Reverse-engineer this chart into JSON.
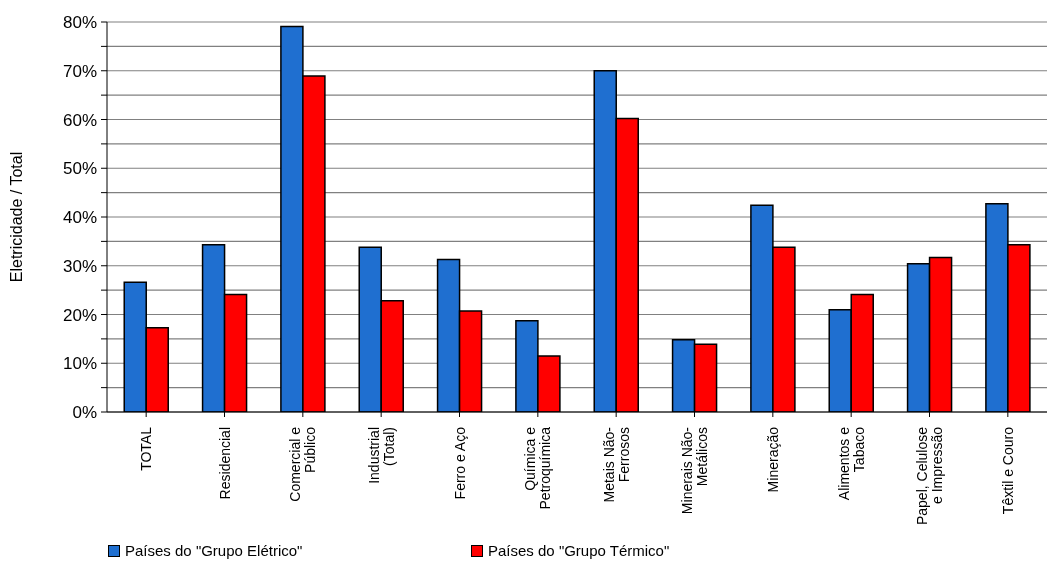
{
  "chart_data": {
    "type": "bar",
    "ylabel": "Eletricidade / Total",
    "categories": [
      "TOTAL",
      "Residencial",
      "Comercial e\nPúblico",
      "Industrial\n(Total)",
      "Ferro e Aço",
      "Química e\nPetroquímica",
      "Metais Não-\nFerrosos",
      "Minerais Não-\nMetálicos",
      "Mineração",
      "Alimentos e\nTabaco",
      "Papel, Celulose\ne Impressão",
      "Têxtil e Couro"
    ],
    "series": [
      {
        "name": "Países do \"Grupo Elétrico\"",
        "color": "#1f6fd0",
        "values": [
          26.6,
          34.3,
          79.1,
          33.8,
          31.3,
          18.7,
          70,
          14.8,
          42.4,
          21.0,
          30.4,
          42.7
        ]
      },
      {
        "name": "Países do \"Grupo Térmico\"",
        "color": "#ff0000",
        "values": [
          17.3,
          24.1,
          68.9,
          22.8,
          20.7,
          11.5,
          60.2,
          13.9,
          33.8,
          24.1,
          31.7,
          34.3
        ]
      }
    ],
    "ylim": [
      0,
      80
    ],
    "yticks": [
      {
        "value": 0,
        "label": "0%"
      },
      {
        "value": 5,
        "label": null
      },
      {
        "value": 10,
        "label": "10%"
      },
      {
        "value": 15,
        "label": null
      },
      {
        "value": 20,
        "label": "20%"
      },
      {
        "value": 25,
        "label": null
      },
      {
        "value": 30,
        "label": "30%"
      },
      {
        "value": 35,
        "label": null
      },
      {
        "value": 40,
        "label": "40%"
      },
      {
        "value": 45,
        "label": null
      },
      {
        "value": 50,
        "label": "50%"
      },
      {
        "value": 55,
        "label": null
      },
      {
        "value": 60,
        "label": "60%"
      },
      {
        "value": 65,
        "label": null
      },
      {
        "value": 70,
        "label": "70%"
      },
      {
        "value": 75,
        "label": null
      },
      {
        "value": 80,
        "label": "80%"
      }
    ],
    "grid": "y",
    "legend": "bottom left"
  }
}
